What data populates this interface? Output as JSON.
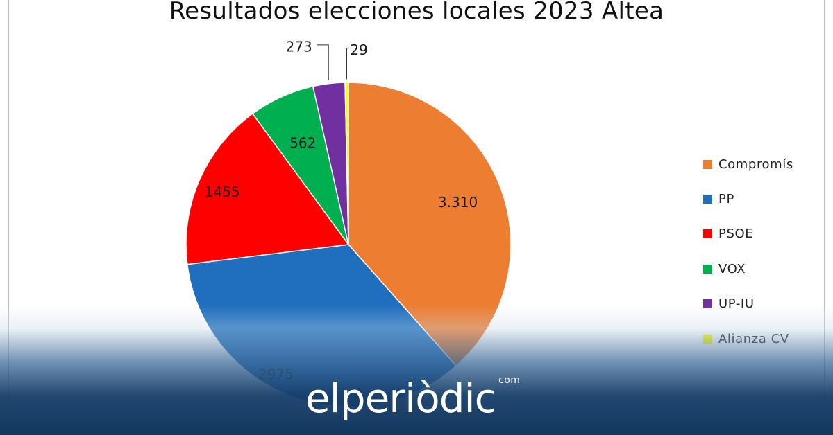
{
  "chart_data": {
    "type": "pie",
    "title": "Resultados elecciones locales 2023 Altea",
    "slices": [
      {
        "label": "Compromís",
        "value": 3310,
        "display": "3.310",
        "color": "#ED7D31"
      },
      {
        "label": "PP",
        "value": 2975,
        "display": "2975",
        "color": "#1F6FBE"
      },
      {
        "label": "PSOE",
        "value": 1455,
        "display": "1455",
        "color": "#FF0000"
      },
      {
        "label": "VOX",
        "value": 562,
        "display": "562",
        "color": "#00B050"
      },
      {
        "label": "UP-IU",
        "value": 273,
        "display": "273",
        "color": "#7030A0"
      },
      {
        "label": "Alianza CV",
        "value": 29,
        "display": "29",
        "color": "#FFFF00"
      }
    ],
    "legend_position": "right"
  },
  "watermark": {
    "brand": "elperiòdic",
    "suffix": "com"
  }
}
